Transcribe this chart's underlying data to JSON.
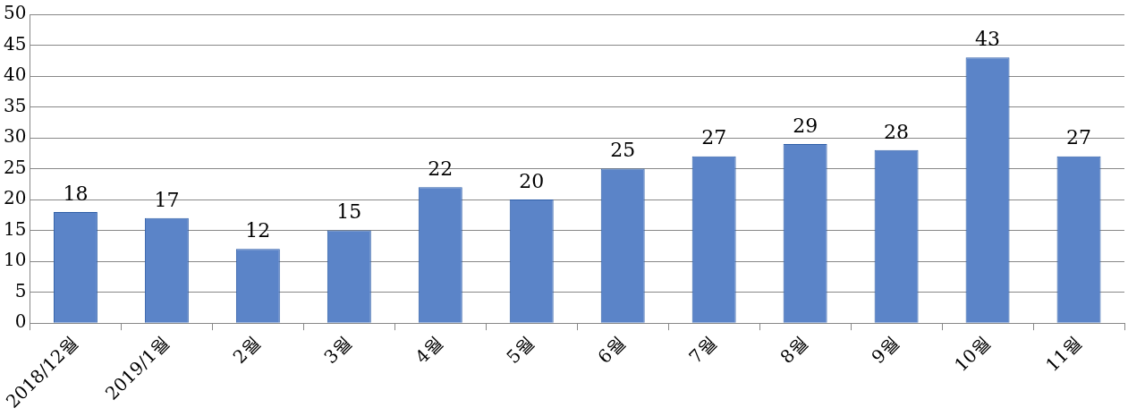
{
  "chart_data": {
    "type": "bar",
    "categories": [
      "2018/12월",
      "2019/1월",
      "2월",
      "3월",
      "4월",
      "5월",
      "6월",
      "7월",
      "8월",
      "9월",
      "10월",
      "11월"
    ],
    "values": [
      18,
      17,
      12,
      15,
      22,
      20,
      25,
      27,
      29,
      28,
      43,
      27
    ],
    "color": "#5b84c8",
    "ylim": [
      0,
      50
    ],
    "yticks": [
      0,
      5,
      10,
      15,
      20,
      25,
      30,
      35,
      40,
      45,
      50
    ],
    "grid": "y",
    "data_labels": true
  }
}
